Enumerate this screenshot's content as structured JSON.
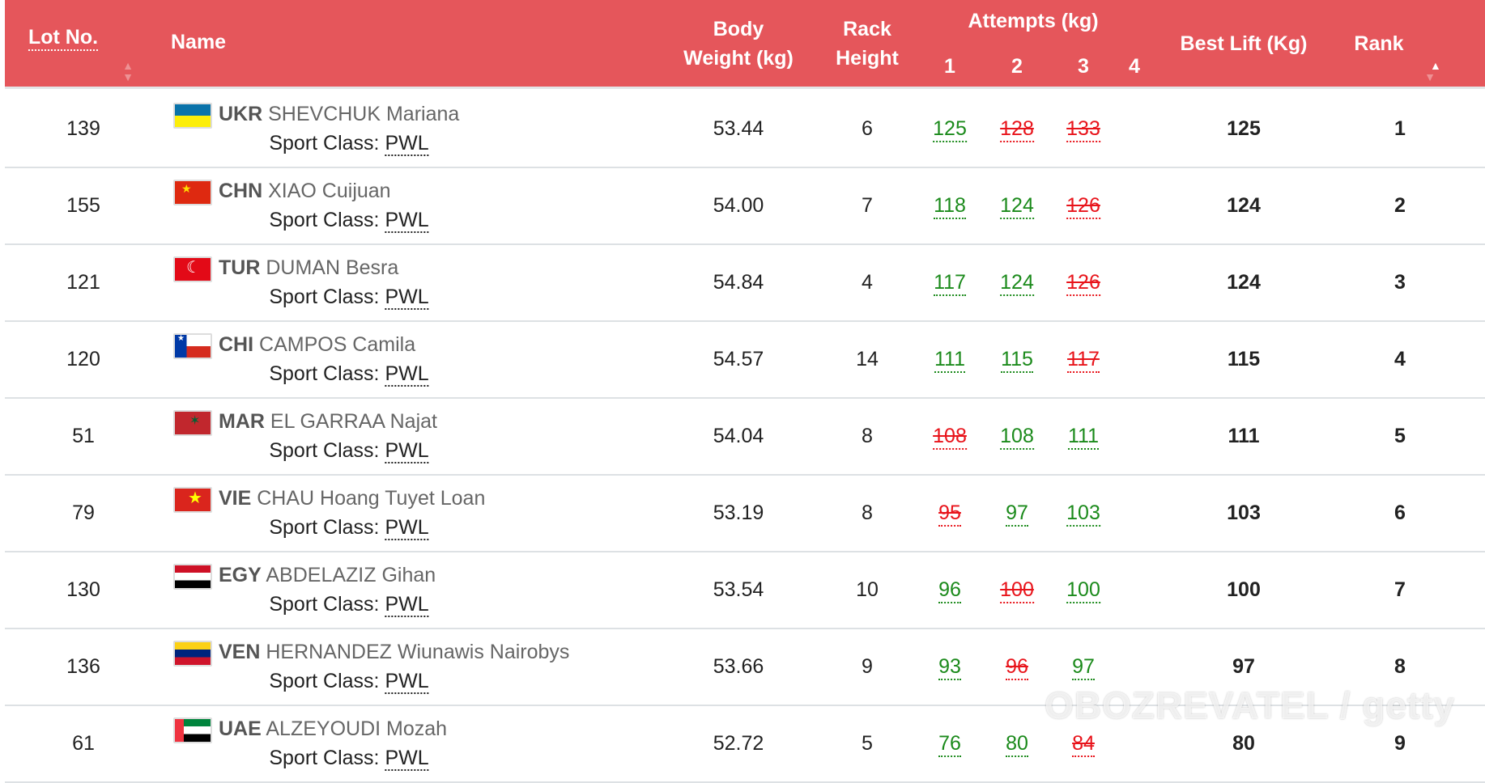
{
  "header": {
    "lot": "Lot No.",
    "name": "Name",
    "body_weight_1": "Body",
    "body_weight_2": "Weight (kg)",
    "rack_1": "Rack",
    "rack_2": "Height",
    "attempts": "Attempts (kg)",
    "a1": "1",
    "a2": "2",
    "a3": "3",
    "a4": "4",
    "best": "Best Lift (Kg)",
    "rank": "Rank"
  },
  "sport_class_label": "Sport Class:",
  "rows": [
    {
      "lot": "139",
      "country": "UKR",
      "name": "SHEVCHUK Mariana",
      "flag": "ukr",
      "sport_class": "PWL",
      "body_weight": "53.44",
      "rack": "6",
      "attempts": [
        {
          "v": "125",
          "ok": true
        },
        {
          "v": "128",
          "ok": false
        },
        {
          "v": "133",
          "ok": false
        }
      ],
      "best": "125",
      "rank": "1"
    },
    {
      "lot": "155",
      "country": "CHN",
      "name": "XIAO Cuijuan",
      "flag": "chn",
      "sport_class": "PWL",
      "body_weight": "54.00",
      "rack": "7",
      "attempts": [
        {
          "v": "118",
          "ok": true
        },
        {
          "v": "124",
          "ok": true
        },
        {
          "v": "126",
          "ok": false
        }
      ],
      "best": "124",
      "rank": "2"
    },
    {
      "lot": "121",
      "country": "TUR",
      "name": "DUMAN Besra",
      "flag": "tur",
      "sport_class": "PWL",
      "body_weight": "54.84",
      "rack": "4",
      "attempts": [
        {
          "v": "117",
          "ok": true
        },
        {
          "v": "124",
          "ok": true
        },
        {
          "v": "126",
          "ok": false
        }
      ],
      "best": "124",
      "rank": "3"
    },
    {
      "lot": "120",
      "country": "CHI",
      "name": "CAMPOS Camila",
      "flag": "chi",
      "sport_class": "PWL",
      "body_weight": "54.57",
      "rack": "14",
      "attempts": [
        {
          "v": "111",
          "ok": true
        },
        {
          "v": "115",
          "ok": true
        },
        {
          "v": "117",
          "ok": false
        }
      ],
      "best": "115",
      "rank": "4"
    },
    {
      "lot": "51",
      "country": "MAR",
      "name": "EL GARRAA Najat",
      "flag": "mar",
      "sport_class": "PWL",
      "body_weight": "54.04",
      "rack": "8",
      "attempts": [
        {
          "v": "108",
          "ok": false
        },
        {
          "v": "108",
          "ok": true
        },
        {
          "v": "111",
          "ok": true
        }
      ],
      "best": "111",
      "rank": "5"
    },
    {
      "lot": "79",
      "country": "VIE",
      "name": "CHAU Hoang Tuyet Loan",
      "flag": "vie",
      "sport_class": "PWL",
      "body_weight": "53.19",
      "rack": "8",
      "attempts": [
        {
          "v": "95",
          "ok": false
        },
        {
          "v": "97",
          "ok": true
        },
        {
          "v": "103",
          "ok": true
        }
      ],
      "best": "103",
      "rank": "6"
    },
    {
      "lot": "130",
      "country": "EGY",
      "name": "ABDELAZIZ Gihan",
      "flag": "egy",
      "sport_class": "PWL",
      "body_weight": "53.54",
      "rack": "10",
      "attempts": [
        {
          "v": "96",
          "ok": true
        },
        {
          "v": "100",
          "ok": false
        },
        {
          "v": "100",
          "ok": true
        }
      ],
      "best": "100",
      "rank": "7"
    },
    {
      "lot": "136",
      "country": "VEN",
      "name": "HERNANDEZ Wiunawis Nairobys",
      "flag": "ven",
      "sport_class": "PWL",
      "body_weight": "53.66",
      "rack": "9",
      "attempts": [
        {
          "v": "93",
          "ok": true
        },
        {
          "v": "96",
          "ok": false
        },
        {
          "v": "97",
          "ok": true
        }
      ],
      "best": "97",
      "rank": "8"
    },
    {
      "lot": "61",
      "country": "UAE",
      "name": "ALZEYOUDI Mozah",
      "flag": "uae",
      "sport_class": "PWL",
      "body_weight": "52.72",
      "rack": "5",
      "attempts": [
        {
          "v": "76",
          "ok": true
        },
        {
          "v": "80",
          "ok": true
        },
        {
          "v": "84",
          "ok": false
        }
      ],
      "best": "80",
      "rank": "9"
    }
  ],
  "watermark": "OBOZREVATEL / getty",
  "colors": {
    "header": "#e5565b",
    "good": "#1b8a1b",
    "bad": "#e8141b"
  }
}
